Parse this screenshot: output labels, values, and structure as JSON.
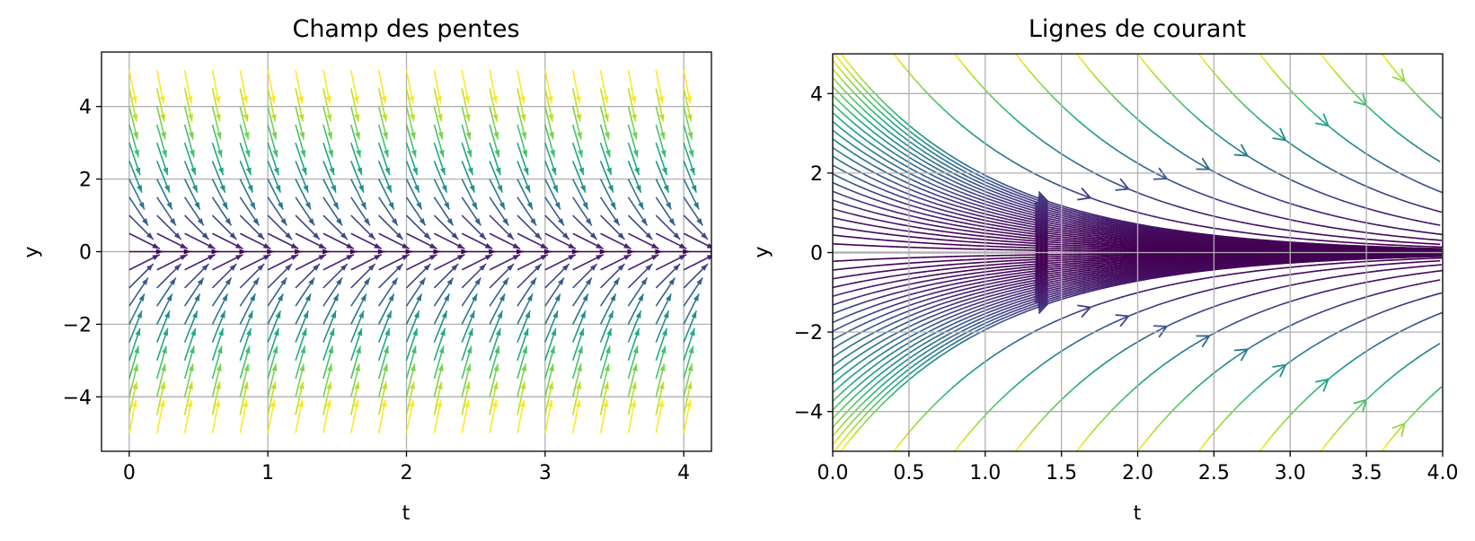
{
  "chart_data": [
    {
      "type": "quiver",
      "title": "Champ des pentes",
      "xlabel": "t",
      "ylabel": "y",
      "xlim": [
        -0.2,
        4.2
      ],
      "ylim": [
        -5.5,
        5.5
      ],
      "x_ticks": [
        0,
        1,
        2,
        3,
        4
      ],
      "y_ticks": [
        -4,
        -2,
        0,
        2,
        4
      ],
      "x_tick_labels": [
        "0",
        "1",
        "2",
        "3",
        "4"
      ],
      "y_tick_labels": [
        "−4",
        "−2",
        "0",
        "2",
        "4"
      ],
      "grid": true,
      "equation": "dy/dt = -y",
      "t_grid": {
        "start": 0,
        "stop": 4,
        "count": 21
      },
      "y_grid": {
        "start": -5,
        "stop": 5,
        "count": 21
      },
      "colormap": "viridis"
    },
    {
      "type": "streamplot",
      "title": "Lignes de courant",
      "xlabel": "t",
      "ylabel": "y",
      "xlim": [
        0,
        4
      ],
      "ylim": [
        -5,
        5
      ],
      "x_ticks": [
        0,
        0.5,
        1,
        1.5,
        2,
        2.5,
        3,
        3.5,
        4
      ],
      "y_ticks": [
        -4,
        -2,
        0,
        2,
        4
      ],
      "x_tick_labels": [
        "0.0",
        "0.5",
        "1.0",
        "1.5",
        "2.0",
        "2.5",
        "3.0",
        "3.5",
        "4.0"
      ],
      "y_tick_labels": [
        "−4",
        "−2",
        "0",
        "2",
        "4"
      ],
      "grid": true,
      "equation": "dy/dt = -y",
      "colormap": "viridis"
    }
  ]
}
